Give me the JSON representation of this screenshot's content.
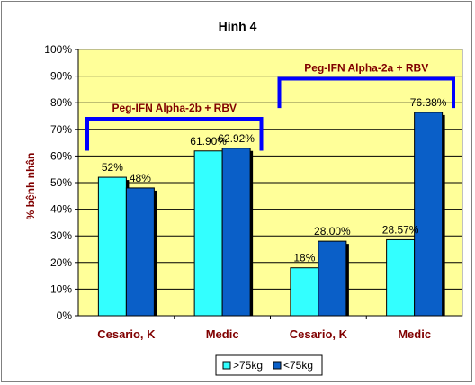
{
  "chart_data": {
    "type": "bar",
    "title": "Hình 4",
    "ylabel": "% bệnh nhân",
    "xlabel": "",
    "categories": [
      "Cesario, K",
      "Medic",
      "Cesario, K",
      "Medic"
    ],
    "series": [
      {
        "name": ">75kg",
        "color": "#33ffff",
        "values": [
          52,
          61.9,
          18,
          28.57
        ],
        "labels": [
          "52%",
          "61.90%",
          "18%",
          "28.57%"
        ]
      },
      {
        "name": "<75kg",
        "color": "#0a5fc8",
        "values": [
          48,
          62.92,
          28,
          76.38
        ],
        "labels": [
          "48%",
          "62.92%",
          "28.00%",
          "76.38%"
        ]
      }
    ],
    "ylim": [
      0,
      100
    ],
    "yticks": [
      "0%",
      "10%",
      "20%",
      "30%",
      "40%",
      "50%",
      "60%",
      "70%",
      "80%",
      "90%",
      "100%"
    ],
    "grid": true,
    "legend_position": "bottom",
    "plot_background": "#ffff99",
    "annotations": [
      {
        "text": "Peg-IFN Alpha-2b + RBV",
        "color": "#800000",
        "bracket_color": "#0000ff",
        "spans_categories": [
          0,
          1
        ]
      },
      {
        "text": "Peg-IFN Alpha-2a + RBV",
        "color": "#800000",
        "bracket_color": "#0000ff",
        "spans_categories": [
          2,
          3
        ]
      }
    ]
  }
}
